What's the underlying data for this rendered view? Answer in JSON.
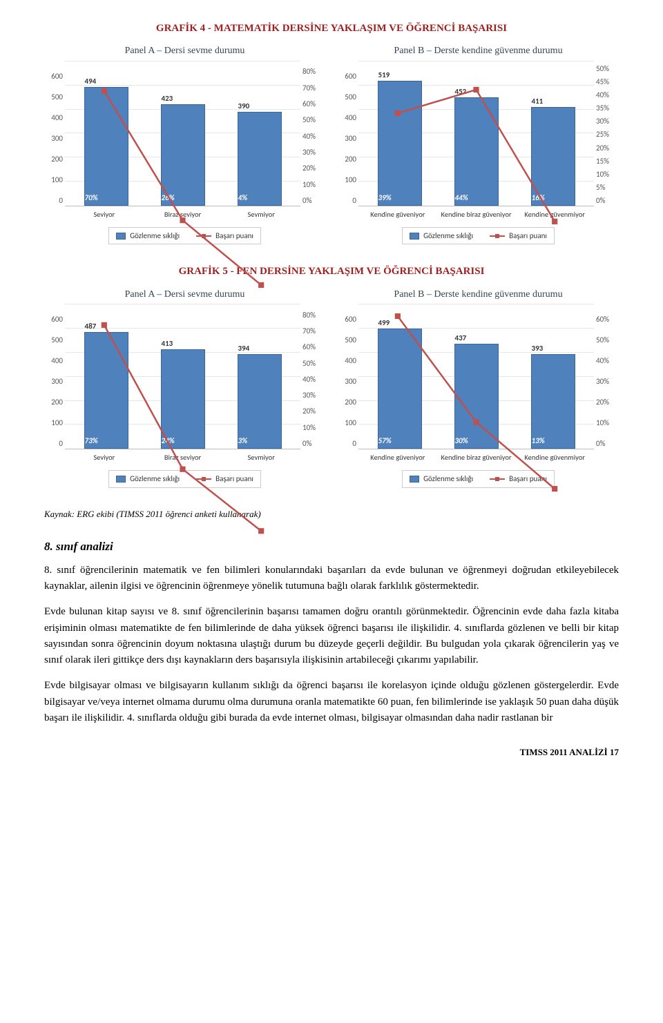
{
  "section4": {
    "title": "GRAFİK 4 - MATEMATİK DERSİNE YAKLAŞIM VE ÖĞRENCİ BAŞARISI",
    "panelA": {
      "title": "Panel A – Dersi sevme durumu",
      "yMax": 600,
      "yStep": 100,
      "y2Max": 80,
      "y2Step": 10,
      "categories": [
        "Seviyor",
        "Biraz seviyor",
        "Sevmiyor"
      ],
      "barValues": [
        494,
        423,
        390
      ],
      "inBarLabels": [
        "70%",
        "26%",
        "4%"
      ],
      "lineValues": [
        70,
        26,
        4
      ],
      "barColor": "#4f81bd",
      "lineColor": "#c0504d",
      "legendBar": "Gözlenme sıklığı",
      "legendLine": "Başarı puanı"
    },
    "panelB": {
      "title": "Panel B – Derste kendine güvenme durumu",
      "yMax": 600,
      "yStep": 100,
      "y2Max": 50,
      "y2Step": 5,
      "categories": [
        "Kendine güveniyor",
        "Kendine biraz güveniyor",
        "Kendine güvenmiyor"
      ],
      "barValues": [
        519,
        452,
        411
      ],
      "inBarLabels": [
        "39%",
        "44%",
        "16%"
      ],
      "lineValues": [
        39,
        44,
        16
      ],
      "barColor": "#4f81bd",
      "lineColor": "#c0504d",
      "legendBar": "Gözlenme sıklığı",
      "legendLine": "Başarı puanı"
    }
  },
  "section5": {
    "title": "GRAFİK 5 - FEN DERSİNE YAKLAŞIM VE ÖĞRENCİ BAŞARISI",
    "panelA": {
      "title": "Panel A – Dersi sevme durumu",
      "yMax": 600,
      "yStep": 100,
      "y2Max": 80,
      "y2Step": 10,
      "categories": [
        "Seviyor",
        "Biraz seviyor",
        "Sevmiyor"
      ],
      "barValues": [
        487,
        413,
        394
      ],
      "inBarLabels": [
        "73%",
        "24%",
        "3%"
      ],
      "lineValues": [
        73,
        24,
        3
      ],
      "barColor": "#4f81bd",
      "lineColor": "#c0504d",
      "legendBar": "Gözlenme sıklığı",
      "legendLine": "Başarı puanı"
    },
    "panelB": {
      "title": "Panel B – Derste kendine güvenme durumu",
      "yMax": 600,
      "yStep": 100,
      "y2Max": 60,
      "y2Step": 10,
      "categories": [
        "Kendine güveniyor",
        "Kendine biraz güveniyor",
        "Kendine güvenmiyor"
      ],
      "barValues": [
        499,
        437,
        393
      ],
      "inBarLabels": [
        "57%",
        "30%",
        "13%"
      ],
      "lineValues": [
        57,
        30,
        13
      ],
      "barColor": "#4f81bd",
      "lineColor": "#c0504d",
      "legendBar": "Gözlenme sıklığı",
      "legendLine": "Başarı puanı"
    }
  },
  "kaynak": "Kaynak: ERG ekibi (TIMSS 2011 öğrenci anketi kullanarak)",
  "heading": "8. sınıf analizi",
  "paragraphs": [
    "8. sınıf öğrencilerinin matematik ve fen bilimleri konularındaki başarıları da evde bulunan ve öğrenmeyi doğrudan etkileyebilecek kaynaklar, ailenin ilgisi ve öğrencinin öğrenmeye yönelik tutumuna bağlı olarak farklılık göstermektedir.",
    "Evde bulunan kitap sayısı ve 8. sınıf öğrencilerinin başarısı tamamen doğru orantılı görünmektedir. Öğrencinin evde daha fazla kitaba erişiminin olması matematikte de fen bilimlerinde de daha yüksek öğrenci başarısı ile ilişkilidir. 4. sınıflarda gözlenen ve belli bir kitap sayısından sonra öğrencinin doyum noktasına ulaştığı durum bu düzeyde geçerli değildir. Bu bulgudan yola çıkarak öğrencilerin yaş ve sınıf olarak ileri gittikçe ders dışı kaynakların ders başarısıyla ilişkisinin artabileceği çıkarımı yapılabilir.",
    "Evde bilgisayar olması ve bilgisayarın kullanım sıklığı da öğrenci başarısı ile korelasyon içinde olduğu gözlenen göstergelerdir. Evde bilgisayar ve/veya internet olmama durumu olma durumuna oranla matematikte 60 puan, fen bilimlerinde ise yaklaşık 50 puan daha düşük başarı ile ilişkilidir. 4. sınıflarda olduğu gibi burada da evde internet olması, bilgisayar olmasından daha nadir rastlanan bir"
  ],
  "footer": "TIMSS 2011 ANALİZİ  17"
}
